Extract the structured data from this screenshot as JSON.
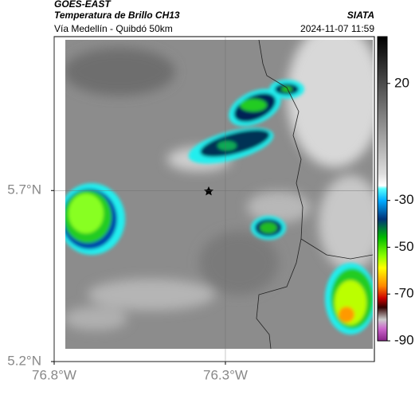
{
  "header": {
    "title": "GOES-EAST",
    "subtitle": "Temperatura de Brillo CH13",
    "region": "Vía Medellín - Quibdó 50km",
    "source": "SIATA",
    "timestamp": "2024-11-07 11:59"
  },
  "map": {
    "xlim": [
      -76.8,
      -75.865
    ],
    "ylim": [
      5.2,
      6.15
    ],
    "xticks": [
      {
        "value": -76.8,
        "label": "76.8°W"
      },
      {
        "value": -76.3,
        "label": "76.3°W"
      }
    ],
    "yticks": [
      {
        "value": 5.7,
        "label": "5.7°N"
      },
      {
        "value": 5.2,
        "label": "5.2°N"
      }
    ],
    "grid": true
  },
  "colorbar": {
    "lim": [
      40,
      -90
    ],
    "ticks": [
      20,
      -30,
      -50,
      -70,
      -90
    ]
  }
}
